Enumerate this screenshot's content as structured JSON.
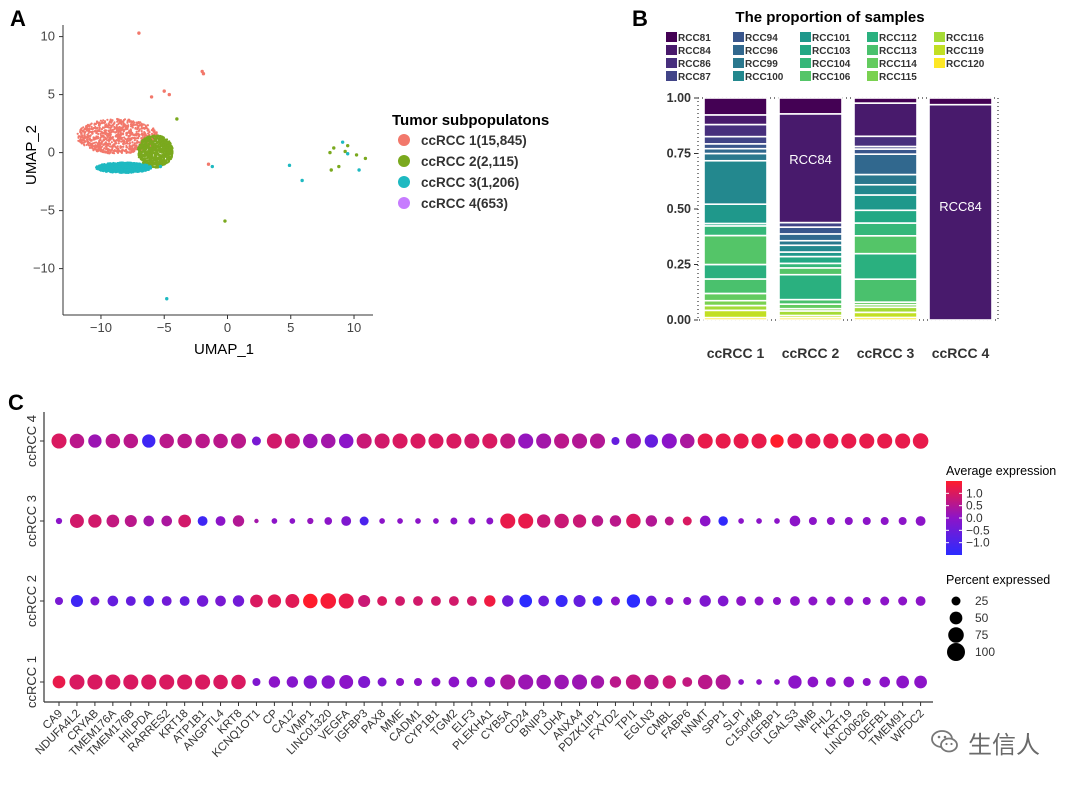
{
  "panels": {
    "a": {
      "letter": "A",
      "chart_data": {
        "type": "scatter",
        "title": "",
        "xlabel": "UMAP_1",
        "ylabel": "UMAP_2",
        "xlim": [
          -13,
          11.5
        ],
        "ylim": [
          -14,
          11
        ],
        "xticks": [
          -10,
          -5,
          0,
          5,
          10
        ],
        "xtick_labels": [
          "−10",
          "−5",
          "0",
          "5",
          "10"
        ],
        "yticks": [
          10,
          5,
          0,
          -5,
          -10
        ],
        "ytick_labels": [
          "10",
          "5",
          "0",
          "−5",
          "−10"
        ],
        "legend_title": "Tumor subpopulatons",
        "series": [
          {
            "name": "ccRCC 1(15,845)",
            "color": "#f2786b",
            "points": [
              [
                -7,
                10.3
              ],
              [
                -2,
                7
              ],
              [
                -1.9,
                6.8
              ],
              [
                -5,
                5.3
              ],
              [
                -4.6,
                5
              ],
              [
                -1.5,
                -1
              ],
              [
                -6,
                4.8
              ]
            ]
          },
          {
            "name": "ccRCC 2(2,115)",
            "color": "#7aa91e",
            "points": [
              [
                -4,
                2.9
              ],
              [
                -0.2,
                -5.9
              ],
              [
                8.1,
                0
              ],
              [
                8.4,
                0.4
              ],
              [
                8.8,
                -1.2
              ],
              [
                9.3,
                0.1
              ],
              [
                10.2,
                -0.2
              ],
              [
                10.9,
                -0.5
              ],
              [
                9.5,
                0.6
              ],
              [
                8.2,
                -1.5
              ]
            ]
          },
          {
            "name": "ccRCC 3(1,206)",
            "color": "#1eb9c1",
            "points": [
              [
                -5.3,
                -1.2
              ],
              [
                -4.8,
                -12.6
              ],
              [
                4.9,
                -1.1
              ],
              [
                5.9,
                -2.4
              ],
              [
                9.1,
                0.9
              ],
              [
                9.5,
                -0.1
              ],
              [
                10.4,
                -1.5
              ],
              [
                -1.2,
                -1.2
              ]
            ]
          },
          {
            "name": "ccRCC 4(653)",
            "color": "#c77cff",
            "points": []
          }
        ],
        "clusters": [
          {
            "series": 0,
            "cx": -8.7,
            "cy": 1.4,
            "rx": 3.2,
            "ry": 1.5
          },
          {
            "series": 1,
            "cx": -5.7,
            "cy": 0.1,
            "rx": 1.4,
            "ry": 1.4
          },
          {
            "series": 2,
            "cx": -8.2,
            "cy": -1.3,
            "rx": 2.2,
            "ry": 0.45
          }
        ]
      }
    },
    "b": {
      "letter": "B",
      "chart_data": {
        "type": "bar",
        "stacked": true,
        "title": "The proportion of samples",
        "categories": [
          "ccRCC 1",
          "ccRCC 2",
          "ccRCC 3",
          "ccRCC 4"
        ],
        "ylim": [
          0,
          1
        ],
        "yticks": [
          0,
          0.25,
          0.5,
          0.75,
          1.0
        ],
        "ytick_labels": [
          "0.00",
          "0.25",
          "0.50",
          "0.75",
          "1.00"
        ],
        "legend": [
          {
            "name": "RCC81",
            "color": "#440154"
          },
          {
            "name": "RCC84",
            "color": "#481a6c"
          },
          {
            "name": "RCC86",
            "color": "#472f7d"
          },
          {
            "name": "RCC87",
            "color": "#414487"
          },
          {
            "name": "RCC94",
            "color": "#39568c"
          },
          {
            "name": "RCC96",
            "color": "#31688e"
          },
          {
            "name": "RCC99",
            "color": "#2a788e"
          },
          {
            "name": "RCC100",
            "color": "#23888e"
          },
          {
            "name": "RCC101",
            "color": "#1f988b"
          },
          {
            "name": "RCC103",
            "color": "#22a884"
          },
          {
            "name": "RCC104",
            "color": "#35b779"
          },
          {
            "name": "RCC106",
            "color": "#54c568"
          },
          {
            "name": "RCC112",
            "color": "#2ab07f"
          },
          {
            "name": "RCC113",
            "color": "#4ac16d"
          },
          {
            "name": "RCC114",
            "color": "#63cb5f"
          },
          {
            "name": "RCC115",
            "color": "#7ad151"
          },
          {
            "name": "RCC116",
            "color": "#a5db36"
          },
          {
            "name": "RCC119",
            "color": "#c2df23"
          },
          {
            "name": "RCC120",
            "color": "#fde725"
          }
        ],
        "bar_labels": [
          null,
          "RCC84",
          null,
          "RCC84"
        ],
        "segments": [
          [
            [
              "RCC120",
              0.01
            ],
            [
              "RCC119",
              0.03
            ],
            [
              "RCC116",
              0.02
            ],
            [
              "RCC115",
              0.02
            ],
            [
              "RCC114",
              0.03
            ],
            [
              "RCC113",
              0.06
            ],
            [
              "RCC112",
              0.06
            ],
            [
              "RCC106",
              0.12
            ],
            [
              "RCC104",
              0.04
            ],
            [
              "RCC103",
              0.01
            ],
            [
              "RCC101",
              0.08
            ],
            [
              "RCC100",
              0.18
            ],
            [
              "RCC99",
              0.03
            ],
            [
              "RCC96",
              0.02
            ],
            [
              "RCC94",
              0.02
            ],
            [
              "RCC87",
              0.03
            ],
            [
              "RCC86",
              0.05
            ],
            [
              "RCC84",
              0.04
            ],
            [
              "RCC81",
              0.07
            ]
          ],
          [
            [
              "RCC120",
              0.01
            ],
            [
              "RCC119",
              0.01
            ],
            [
              "RCC116",
              0.02
            ],
            [
              "RCC115",
              0.01
            ],
            [
              "RCC114",
              0.02
            ],
            [
              "RCC113",
              0.02
            ],
            [
              "RCC112",
              0.11
            ],
            [
              "RCC106",
              0.03
            ],
            [
              "RCC104",
              0.02
            ],
            [
              "RCC103",
              0.03
            ],
            [
              "RCC101",
              0.02
            ],
            [
              "RCC100",
              0.03
            ],
            [
              "RCC99",
              0.02
            ],
            [
              "RCC96",
              0.03
            ],
            [
              "RCC94",
              0.03
            ],
            [
              "RCC87",
              0.02
            ],
            [
              "RCC84",
              0.48
            ],
            [
              "RCC81",
              0.07
            ]
          ],
          [
            [
              "RCC120",
              0.01
            ],
            [
              "RCC119",
              0.02
            ],
            [
              "RCC116",
              0.02
            ],
            [
              "RCC115",
              0.01
            ],
            [
              "RCC114",
              0.01
            ],
            [
              "RCC113",
              0.09
            ],
            [
              "RCC112",
              0.1
            ],
            [
              "RCC106",
              0.07
            ],
            [
              "RCC104",
              0.05
            ],
            [
              "RCC103",
              0.05
            ],
            [
              "RCC101",
              0.06
            ],
            [
              "RCC100",
              0.04
            ],
            [
              "RCC99",
              0.04
            ],
            [
              "RCC96",
              0.08
            ],
            [
              "RCC94",
              0.02
            ],
            [
              "RCC87",
              0.01
            ],
            [
              "RCC86",
              0.04
            ],
            [
              "RCC84",
              0.13
            ],
            [
              "RCC81",
              0.02
            ]
          ],
          [
            [
              "RCC84",
              0.97
            ],
            [
              "RCC81",
              0.03
            ]
          ]
        ]
      }
    },
    "c": {
      "letter": "C",
      "chart_data": {
        "type": "dotplot",
        "genes": [
          "CA9",
          "NDUFA4L2",
          "CRYAB",
          "TMEM176A",
          "TMEM176B",
          "HILPDA",
          "RARRES2",
          "KRT18",
          "ATP1B1",
          "ANGPTL4",
          "KRT8",
          "KCNQ1OT1",
          "CP",
          "CA12",
          "VMP1",
          "LINC01320",
          "VEGFA",
          "IGFBP3",
          "PAX8",
          "MME",
          "CADM1",
          "CYP1B1",
          "TGM2",
          "ELF3",
          "PLEKHA1",
          "CYB5A",
          "CD24",
          "BNIP3",
          "LDHA",
          "ANXA4",
          "PDZK1IP1",
          "FXYD2",
          "TPI1",
          "EGLN3",
          "CMBL",
          "FABP6",
          "NNMT",
          "SPP1",
          "SLPI",
          "C15orf48",
          "IGFBP1",
          "LGALS3",
          "NMB",
          "FHL2",
          "KRT19",
          "LINC00626",
          "DEFB1",
          "TMEM91",
          "WFDC2"
        ],
        "groups": [
          "ccRCC 4",
          "ccRCC 3",
          "ccRCC 2",
          "ccRCC 1"
        ],
        "pct": [
          [
            70,
            65,
            55,
            65,
            65,
            55,
            65,
            65,
            65,
            65,
            70,
            25,
            70,
            70,
            65,
            65,
            65,
            70,
            70,
            70,
            70,
            70,
            70,
            70,
            70,
            70,
            70,
            70,
            70,
            70,
            70,
            20,
            70,
            55,
            70,
            65,
            70,
            70,
            70,
            70,
            55,
            70,
            70,
            70,
            70,
            70,
            70,
            70,
            75
          ],
          [
            12,
            60,
            55,
            50,
            45,
            35,
            35,
            50,
            30,
            30,
            40,
            6,
            10,
            10,
            12,
            18,
            30,
            25,
            10,
            10,
            10,
            10,
            15,
            15,
            15,
            70,
            70,
            55,
            65,
            55,
            40,
            40,
            65,
            40,
            25,
            25,
            35,
            28,
            10,
            10,
            10,
            35,
            20,
            20,
            20,
            20,
            20,
            20,
            30
          ],
          [
            20,
            45,
            25,
            35,
            30,
            35,
            30,
            30,
            40,
            35,
            40,
            50,
            55,
            60,
            65,
            75,
            70,
            45,
            30,
            30,
            30,
            30,
            30,
            30,
            40,
            40,
            50,
            35,
            45,
            45,
            30,
            25,
            55,
            35,
            20,
            20,
            40,
            35,
            30,
            25,
            20,
            30,
            25,
            25,
            25,
            20,
            25,
            25,
            30
          ],
          [
            50,
            70,
            70,
            70,
            70,
            70,
            70,
            70,
            70,
            65,
            65,
            20,
            40,
            40,
            55,
            55,
            60,
            45,
            25,
            20,
            20,
            25,
            35,
            35,
            35,
            70,
            70,
            65,
            65,
            70,
            55,
            40,
            70,
            65,
            55,
            30,
            65,
            70,
            10,
            10,
            10,
            55,
            35,
            30,
            35,
            20,
            35,
            50,
            50
          ]
        ],
        "expr": [
          [
            1.0,
            0.6,
            0.2,
            0.6,
            0.6,
            -1.2,
            0.6,
            0.6,
            0.6,
            0.6,
            0.6,
            -0.3,
            0.9,
            0.8,
            0.2,
            0.3,
            0.0,
            0.8,
            0.9,
            1.0,
            1.0,
            1.0,
            1.0,
            0.9,
            1.0,
            0.7,
            0.1,
            0.3,
            0.6,
            0.5,
            0.5,
            -0.6,
            0.2,
            -0.6,
            0.0,
            0.4,
            1.2,
            1.2,
            1.2,
            1.2,
            1.5,
            1.2,
            1.2,
            1.2,
            1.2,
            1.2,
            1.2,
            1.2,
            1.2
          ],
          [
            0.0,
            0.9,
            0.9,
            0.7,
            0.6,
            0.3,
            0.4,
            0.9,
            -1.2,
            0.0,
            0.5,
            0.3,
            0.0,
            0.0,
            0.1,
            0.0,
            -0.2,
            -1.0,
            0.0,
            0.0,
            0.0,
            0.0,
            0.0,
            0.0,
            0.0,
            1.2,
            1.2,
            0.8,
            0.8,
            0.8,
            0.6,
            0.6,
            1.0,
            0.5,
            0.6,
            1.0,
            0.0,
            -1.4,
            0.0,
            0.0,
            0.0,
            0.0,
            0.0,
            0.0,
            0.0,
            0.0,
            0.0,
            0.0,
            0.0
          ],
          [
            -0.3,
            -1.2,
            -0.3,
            -0.6,
            -0.6,
            -0.8,
            -0.4,
            -0.6,
            -0.4,
            -0.3,
            -0.4,
            1.0,
            1.1,
            1.1,
            1.5,
            1.4,
            1.2,
            0.8,
            1.0,
            0.9,
            0.9,
            0.9,
            0.9,
            0.9,
            1.3,
            -0.5,
            -1.5,
            -0.5,
            -1.3,
            -0.6,
            -1.4,
            0.0,
            -1.5,
            -0.4,
            0.0,
            0.0,
            -0.2,
            -0.2,
            0.0,
            0.0,
            0.0,
            0.0,
            0.0,
            0.0,
            0.0,
            0.0,
            0.0,
            0.0,
            0.0
          ],
          [
            1.2,
            1.0,
            1.0,
            1.0,
            1.0,
            1.0,
            1.0,
            1.0,
            1.0,
            1.0,
            1.0,
            -0.2,
            0.0,
            -0.1,
            -0.2,
            -0.1,
            0.0,
            -0.2,
            -0.2,
            0.0,
            0.0,
            0.0,
            0.0,
            0.0,
            0.0,
            0.4,
            0.2,
            0.2,
            0.2,
            0.2,
            0.3,
            0.6,
            0.7,
            0.6,
            0.8,
            0.7,
            0.6,
            0.5,
            0.0,
            0.0,
            0.0,
            0.0,
            0.0,
            0.0,
            0.0,
            0.0,
            0.0,
            0.0,
            0.0
          ]
        ],
        "expr_legend_title": "Average expression",
        "expr_ticks": [
          1.0,
          0.5,
          0.0,
          -0.5,
          -1.0
        ],
        "expr_tick_labels": [
          "1.0",
          "0.5",
          "0.0",
          "−0.5",
          "−1.0"
        ],
        "expr_range": [
          -1.5,
          1.5
        ],
        "pct_legend_title": "Percent expressed",
        "pct_ticks": [
          25,
          50,
          75,
          100
        ],
        "pct_tick_labels": [
          "25",
          "50",
          "75",
          "100"
        ],
        "color_low": "#2b2bff",
        "color_high": "#ff1c2c"
      }
    }
  },
  "watermark": {
    "text": "生信人",
    "color": "#6a6a6a"
  }
}
